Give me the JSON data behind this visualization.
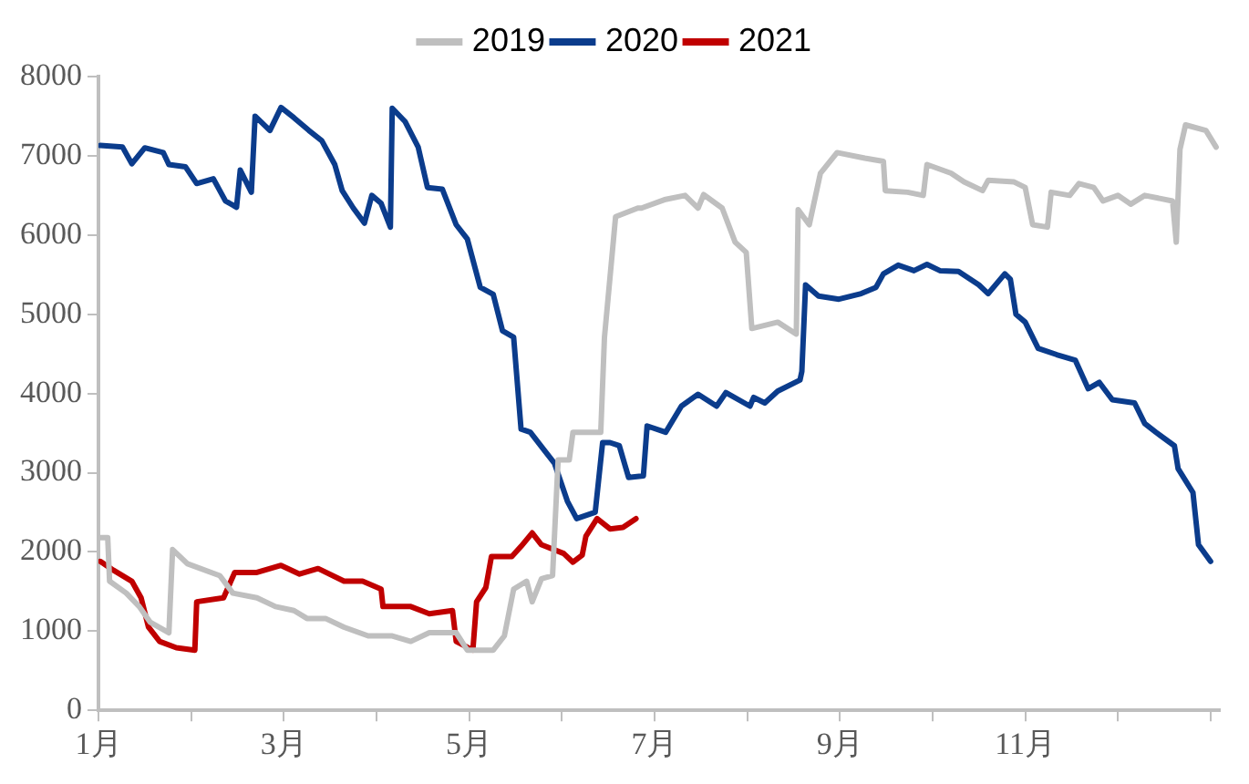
{
  "chart_data": {
    "type": "line",
    "legend": "top",
    "grid": false,
    "marker": "none",
    "line_style": "solid",
    "xlim": [
      1,
      13.1
    ],
    "ylim": [
      0,
      8000
    ],
    "xticks": [
      {
        "value": 1,
        "label": "1月"
      },
      {
        "value": 2,
        "label": null
      },
      {
        "value": 3,
        "label": "3月"
      },
      {
        "value": 4,
        "label": null
      },
      {
        "value": 5,
        "label": "5月"
      },
      {
        "value": 6,
        "label": null
      },
      {
        "value": 7,
        "label": "7月"
      },
      {
        "value": 8,
        "label": null
      },
      {
        "value": 9,
        "label": "9月"
      },
      {
        "value": 10,
        "label": null
      },
      {
        "value": 11,
        "label": "11月"
      },
      {
        "value": 12,
        "label": null
      },
      {
        "value": 13,
        "label": null
      }
    ],
    "yticks": [
      0,
      1000,
      2000,
      3000,
      4000,
      5000,
      6000,
      7000,
      8000
    ],
    "series": [
      {
        "name": "2019",
        "color": "#bfbfbf",
        "x": [
          1.02,
          1.1,
          1.12,
          1.3,
          1.44,
          1.56,
          1.76,
          1.8,
          1.96,
          2.31,
          2.45,
          2.71,
          2.91,
          3.11,
          3.25,
          3.45,
          3.65,
          3.91,
          4.17,
          4.37,
          4.57,
          4.86,
          4.98,
          5.26,
          5.38,
          5.48,
          5.62,
          5.68,
          5.78,
          5.9,
          5.96,
          6.08,
          6.12,
          6.42,
          6.46,
          6.58,
          6.82,
          6.86,
          7.12,
          7.33,
          7.47,
          7.53,
          7.73,
          7.87,
          7.99,
          8.05,
          8.33,
          8.53,
          8.55,
          8.67,
          8.79,
          8.97,
          9.27,
          9.47,
          9.49,
          9.73,
          9.9,
          9.94,
          10.2,
          10.34,
          10.54,
          10.6,
          10.88,
          11.0,
          11.08,
          11.24,
          11.28,
          11.48,
          11.58,
          11.74,
          11.84,
          12.0,
          12.14,
          12.29,
          12.59,
          12.63,
          12.67,
          12.73,
          12.95,
          13.06
        ],
        "values": [
          2180,
          2180,
          1630,
          1480,
          1310,
          1110,
          980,
          2030,
          1850,
          1700,
          1480,
          1420,
          1310,
          1260,
          1160,
          1160,
          1050,
          940,
          940,
          870,
          980,
          980,
          760,
          760,
          940,
          1530,
          1630,
          1370,
          1660,
          1700,
          3160,
          3160,
          3510,
          3510,
          4710,
          6230,
          6340,
          6340,
          6450,
          6500,
          6340,
          6510,
          6340,
          5910,
          5780,
          4820,
          4900,
          4750,
          6320,
          6130,
          6780,
          7040,
          6970,
          6930,
          6560,
          6540,
          6500,
          6890,
          6780,
          6670,
          6560,
          6690,
          6670,
          6600,
          6130,
          6100,
          6540,
          6500,
          6650,
          6600,
          6430,
          6500,
          6390,
          6500,
          6430,
          5910,
          7080,
          7390,
          7320,
          7110
        ]
      },
      {
        "name": "2020",
        "color": "#0b3c8c",
        "x": [
          1.02,
          1.26,
          1.36,
          1.5,
          1.7,
          1.76,
          1.94,
          2.06,
          2.24,
          2.37,
          2.49,
          2.53,
          2.65,
          2.69,
          2.85,
          2.97,
          3.11,
          3.27,
          3.41,
          3.55,
          3.63,
          3.75,
          3.87,
          3.95,
          4.05,
          4.15,
          4.17,
          4.31,
          4.45,
          4.55,
          4.71,
          4.86,
          4.98,
          5.12,
          5.26,
          5.36,
          5.48,
          5.56,
          5.66,
          5.82,
          5.92,
          6.06,
          6.16,
          6.36,
          6.44,
          6.52,
          6.62,
          6.72,
          6.88,
          6.92,
          7.12,
          7.29,
          7.47,
          7.67,
          7.77,
          8.03,
          8.07,
          8.19,
          8.33,
          8.57,
          8.59,
          8.63,
          8.77,
          8.99,
          9.23,
          9.39,
          9.47,
          9.63,
          9.8,
          9.94,
          10.08,
          10.28,
          10.5,
          10.6,
          10.78,
          10.84,
          10.9,
          11.0,
          11.14,
          11.34,
          11.54,
          11.68,
          11.8,
          11.94,
          12.18,
          12.29,
          12.41,
          12.61,
          12.65,
          12.81,
          12.87,
          13.0
        ],
        "values": [
          7130,
          7110,
          6900,
          7100,
          7040,
          6890,
          6860,
          6650,
          6710,
          6430,
          6350,
          6820,
          6540,
          7500,
          7320,
          7610,
          7480,
          7320,
          7190,
          6890,
          6560,
          6340,
          6150,
          6500,
          6400,
          6100,
          7600,
          7430,
          7110,
          6600,
          6580,
          6130,
          5950,
          5340,
          5250,
          4790,
          4710,
          3550,
          3510,
          3270,
          3120,
          2640,
          2420,
          2500,
          3380,
          3380,
          3340,
          2940,
          2960,
          3590,
          3510,
          3840,
          3990,
          3840,
          4010,
          3840,
          3950,
          3880,
          4030,
          4170,
          4280,
          5370,
          5230,
          5190,
          5260,
          5340,
          5510,
          5620,
          5550,
          5630,
          5550,
          5540,
          5370,
          5260,
          5510,
          5440,
          5000,
          4900,
          4570,
          4490,
          4420,
          4060,
          4140,
          3920,
          3880,
          3620,
          3510,
          3340,
          3050,
          2750,
          2090,
          1880
        ]
      },
      {
        "name": "2021",
        "color": "#c00000",
        "x": [
          1.02,
          1.16,
          1.36,
          1.46,
          1.54,
          1.66,
          1.84,
          2.04,
          2.06,
          2.35,
          2.47,
          2.71,
          2.97,
          3.17,
          3.37,
          3.65,
          3.85,
          4.05,
          4.07,
          4.37,
          4.57,
          4.82,
          4.86,
          5.04,
          5.08,
          5.18,
          5.24,
          5.46,
          5.56,
          5.68,
          5.78,
          6.02,
          6.12,
          6.22,
          6.26,
          6.38,
          6.52,
          6.66,
          6.8
        ],
        "values": [
          1880,
          1770,
          1630,
          1420,
          1050,
          870,
          790,
          760,
          1370,
          1420,
          1740,
          1740,
          1830,
          1720,
          1790,
          1630,
          1630,
          1530,
          1310,
          1310,
          1220,
          1260,
          870,
          760,
          1370,
          1550,
          1940,
          1940,
          2070,
          2240,
          2090,
          1980,
          1870,
          1960,
          2200,
          2420,
          2290,
          2310,
          2420
        ]
      }
    ]
  }
}
